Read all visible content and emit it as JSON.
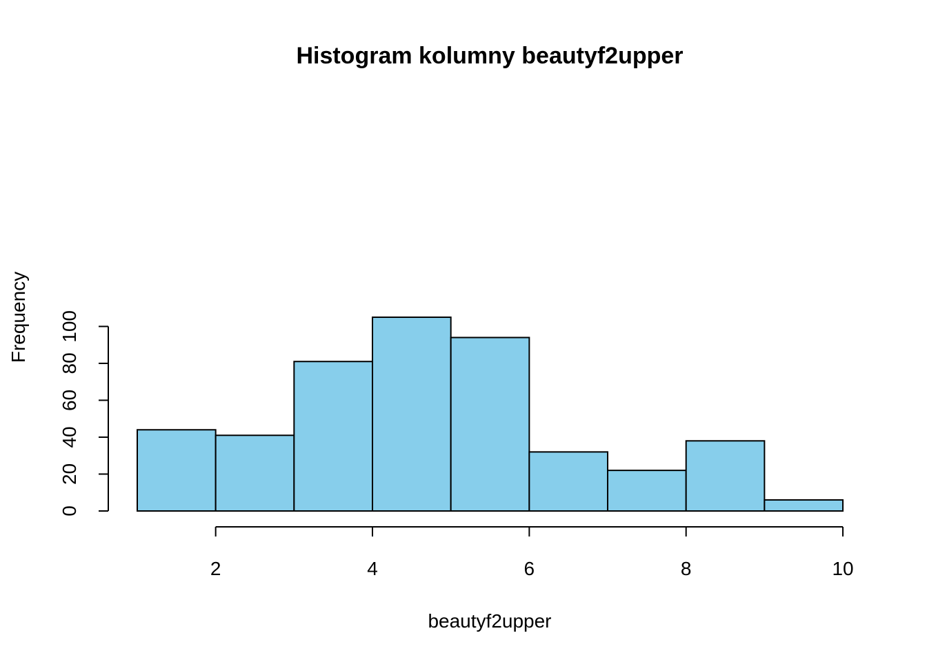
{
  "chart_data": {
    "type": "bar",
    "title": "Histogram kolumny beautyf2upper",
    "xlabel": "beautyf2upper",
    "ylabel": "Frequency",
    "bins": [
      {
        "from": 1,
        "to": 2,
        "value": 44
      },
      {
        "from": 2,
        "to": 3,
        "value": 41
      },
      {
        "from": 3,
        "to": 4,
        "value": 81
      },
      {
        "from": 4,
        "to": 5,
        "value": 105
      },
      {
        "from": 5,
        "to": 6,
        "value": 94
      },
      {
        "from": 6,
        "to": 7,
        "value": 32
      },
      {
        "from": 7,
        "to": 8,
        "value": 22
      },
      {
        "from": 8,
        "to": 9,
        "value": 38
      },
      {
        "from": 9,
        "to": 10,
        "value": 6
      }
    ],
    "xlim": [
      1,
      10
    ],
    "ylim": [
      0,
      100
    ],
    "x_ticks": [
      2,
      4,
      6,
      8,
      10
    ],
    "y_ticks": [
      0,
      20,
      40,
      60,
      80,
      100
    ],
    "bar_color": "#87CEEB",
    "border_color": "#000000",
    "grid": false,
    "legend": "none"
  }
}
